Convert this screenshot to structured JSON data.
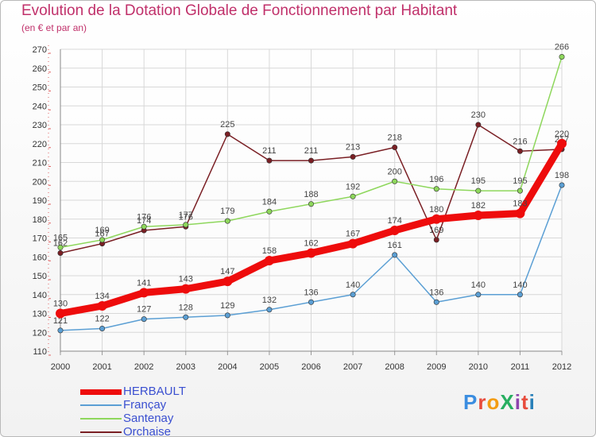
{
  "title": "Evolution de la Dotation Globale de Fonctionnement par Habitant",
  "subtitle": "(en € et par an)",
  "logo": {
    "text": "ProXiti",
    "colors": [
      "#3b8de0",
      "#e84c3d",
      "#f39c12",
      "#27ae60",
      "#8e44ad",
      "#e74c3c",
      "#2980b9"
    ]
  },
  "chart_data": {
    "type": "line",
    "x": [
      "2000",
      "2001",
      "2002",
      "2003",
      "2004",
      "2005",
      "2006",
      "2007",
      "2008",
      "2009",
      "2010",
      "2011",
      "2012"
    ],
    "ylim": [
      110,
      270
    ],
    "yticks": [
      110,
      120,
      130,
      140,
      150,
      160,
      170,
      180,
      190,
      200,
      210,
      220,
      230,
      240,
      250,
      260,
      270
    ],
    "grid": true,
    "legend_position": "bottom-left",
    "series": [
      {
        "name": "Orchaise",
        "color": "#7a1f24",
        "values": [
          162,
          167,
          174,
          176,
          225,
          211,
          211,
          213,
          218,
          169,
          230,
          216,
          217
        ]
      },
      {
        "name": "Santenay",
        "color": "#8ed75c",
        "values": [
          165,
          169,
          176,
          177,
          179,
          184,
          188,
          192,
          200,
          196,
          195,
          195,
          266
        ]
      },
      {
        "name": "Françay",
        "color": "#5b9fd4",
        "values": [
          121,
          122,
          127,
          128,
          129,
          132,
          136,
          140,
          161,
          136,
          140,
          140,
          198
        ]
      },
      {
        "name": "HERBAULT",
        "color": "#ee0c0c",
        "values": [
          130,
          134,
          141,
          143,
          147,
          158,
          162,
          167,
          174,
          180,
          182,
          183,
          220
        ],
        "bold": true
      }
    ]
  },
  "legend": [
    {
      "name": "HERBAULT",
      "color": "#ee0c0c"
    },
    {
      "name": "Françay",
      "color": "#5b9fd4"
    },
    {
      "name": "Santenay",
      "color": "#8ed75c"
    },
    {
      "name": "Orchaise",
      "color": "#7a1f24"
    }
  ]
}
